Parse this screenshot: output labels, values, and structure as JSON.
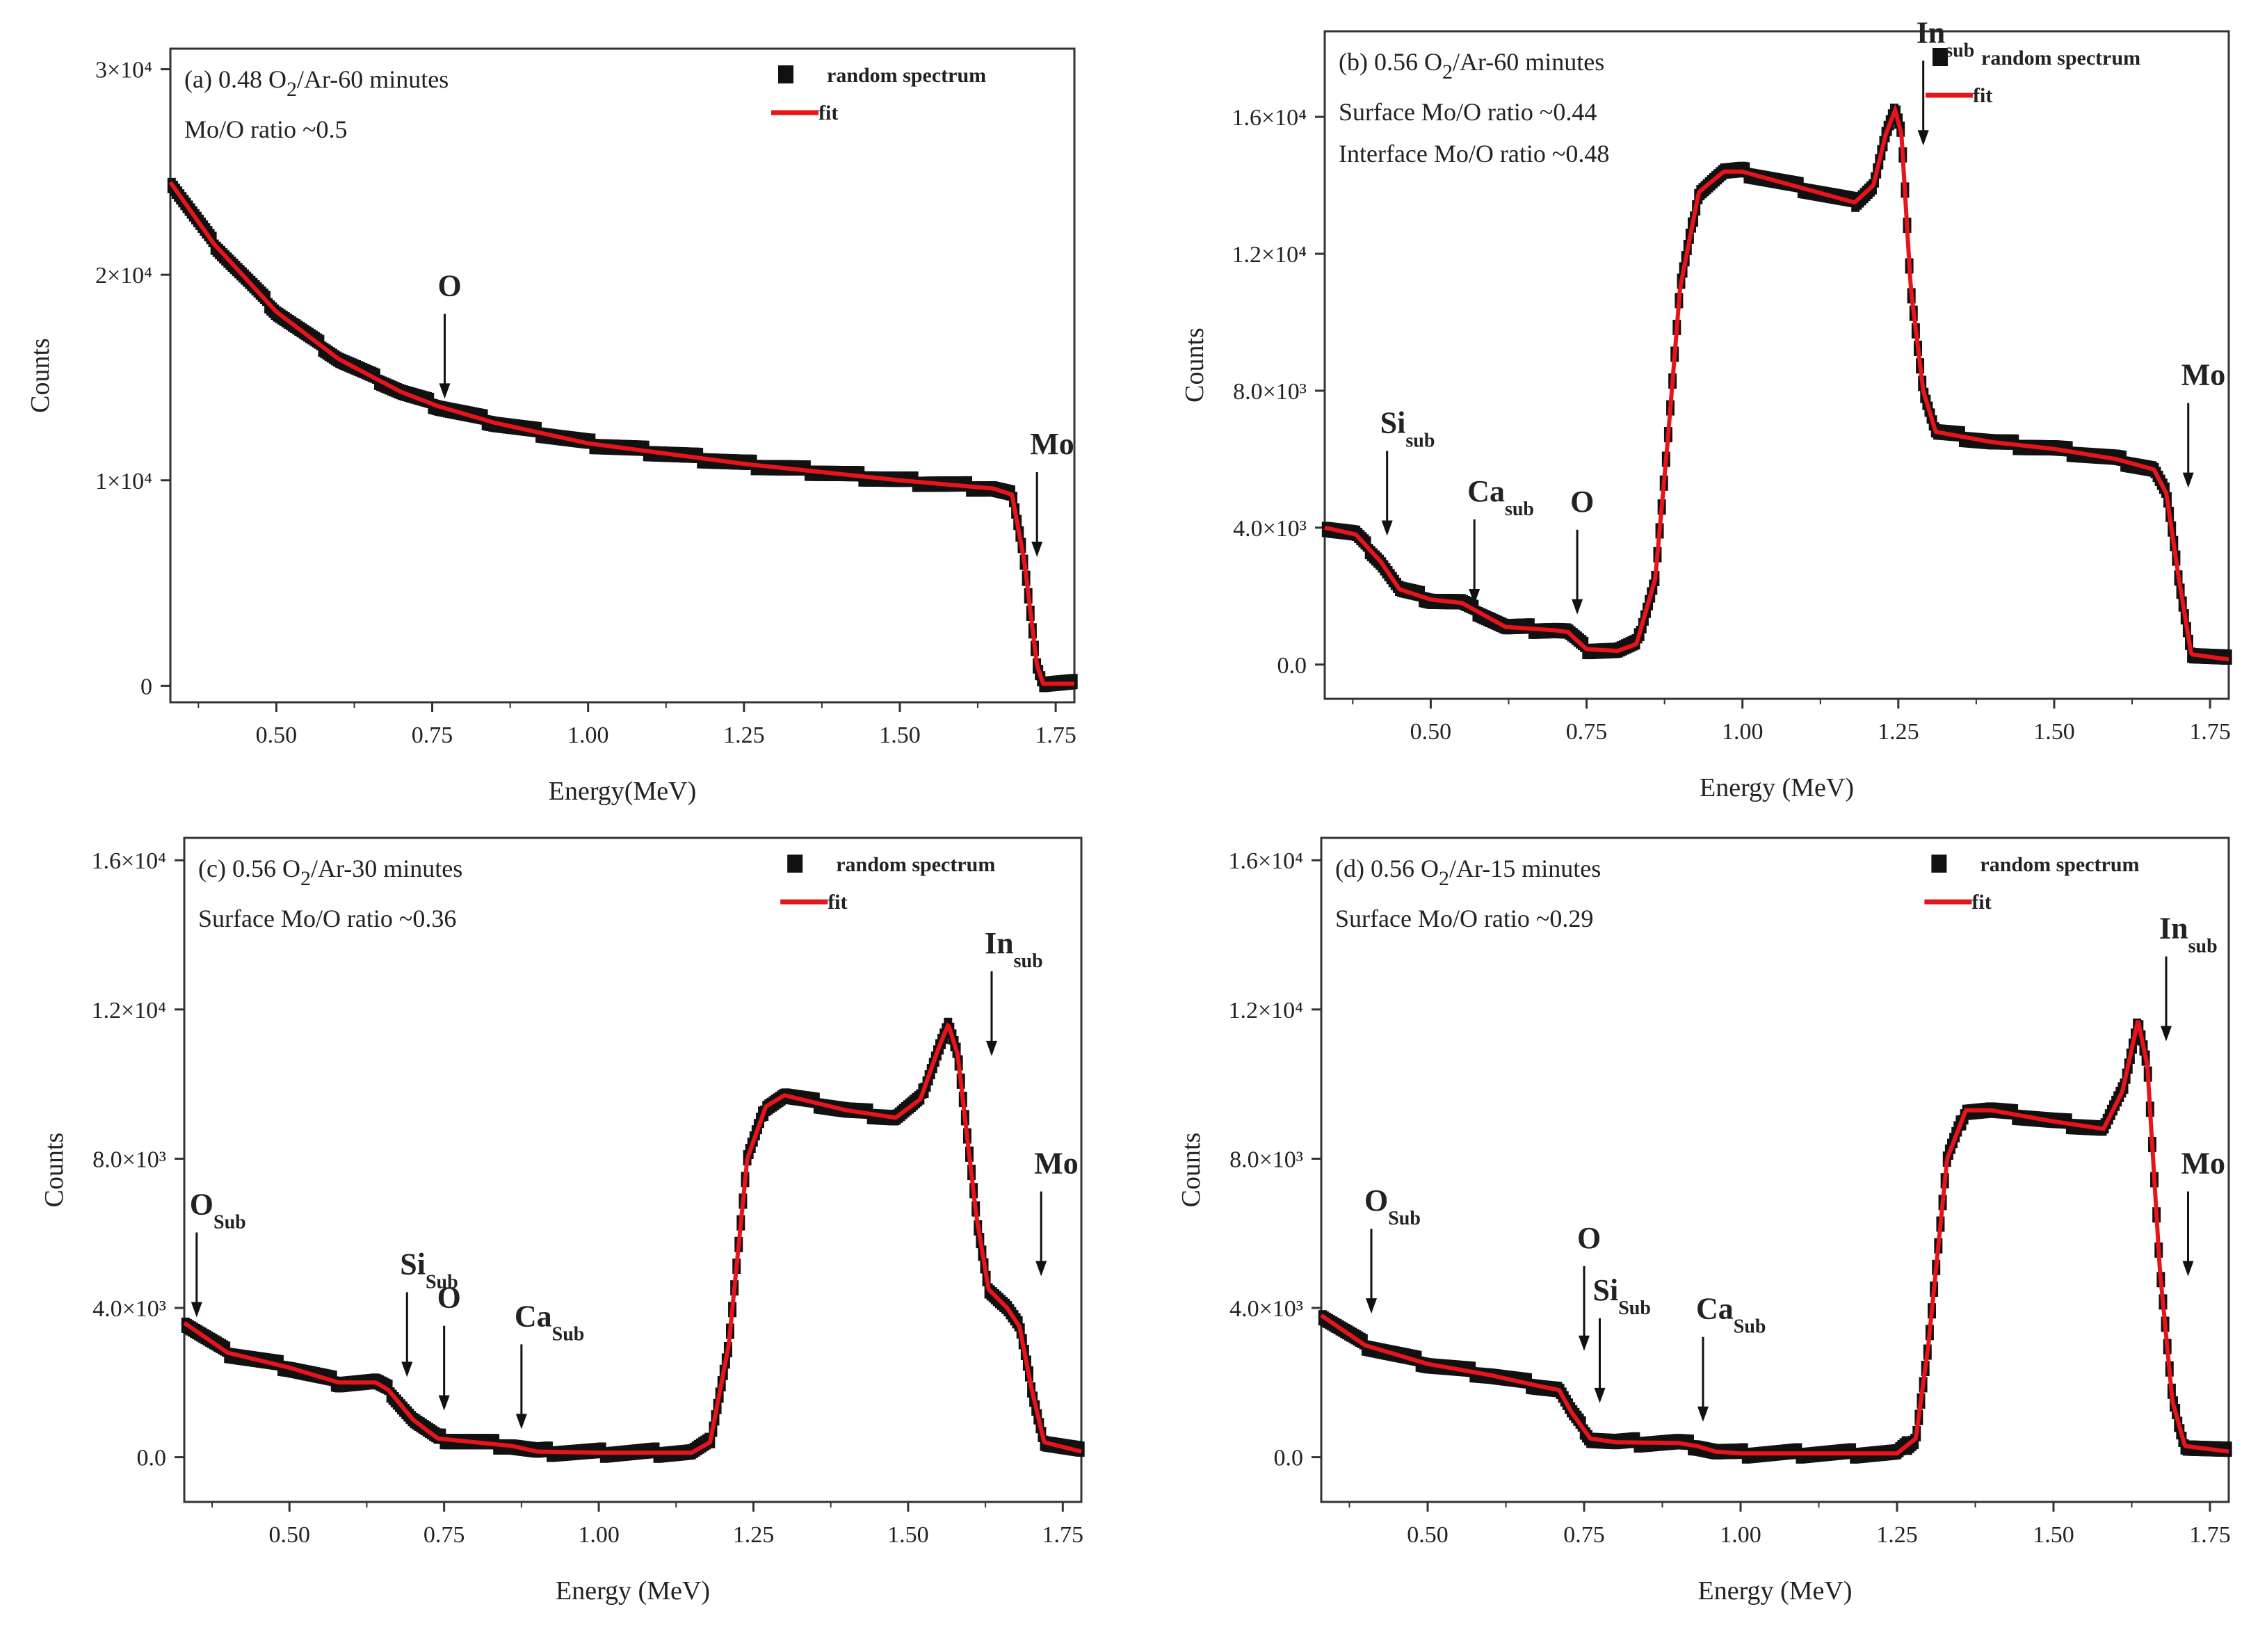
{
  "figure": {
    "y_tick_labels_top": [
      "3×10⁴",
      "2×10⁴",
      "1×10⁴",
      "0"
    ],
    "y_tick_labels_other": [
      "1.6×10⁴",
      "1.2×10⁴",
      "8.0×10³",
      "4.0×10³",
      "0.0"
    ]
  },
  "colors": {
    "marker": "#111111",
    "fit": "#e8141c",
    "axis": "#333333"
  },
  "chart_data": [
    {
      "panel": "a",
      "type": "scatter",
      "title": "(a) 0.48 O2/Ar-60 minutes",
      "info_lines": [
        "Mo/O ratio ~0.5"
      ],
      "xlabel": "Energy(MeV)",
      "ylabel": "Counts",
      "xlim": [
        0.33,
        1.78
      ],
      "ylim": [
        -800,
        31000
      ],
      "x_ticks": [
        0.5,
        0.75,
        1.0,
        1.25,
        1.5,
        1.75
      ],
      "x_tick_labels": [
        "0.50",
        "0.75",
        "1.00",
        "1.25",
        "1.50",
        "1.75"
      ],
      "y_ticks": [
        30000,
        20000,
        10000,
        0
      ],
      "y_tick_labels": [
        "3×10⁴",
        "2×10⁴",
        "1×10⁴",
        "0"
      ],
      "legend": [
        "random spectrum",
        "fit"
      ],
      "series": [
        {
          "name": "random spectrum",
          "style": "markers"
        },
        {
          "name": "fit",
          "style": "line"
        }
      ],
      "curve_points": [
        [
          0.33,
          24500
        ],
        [
          0.4,
          21500
        ],
        [
          0.5,
          18200
        ],
        [
          0.6,
          15900
        ],
        [
          0.7,
          14300
        ],
        [
          0.76,
          13600
        ],
        [
          0.85,
          12800
        ],
        [
          1.0,
          11800
        ],
        [
          1.25,
          10800
        ],
        [
          1.5,
          10000
        ],
        [
          1.65,
          9600
        ],
        [
          1.68,
          9300
        ],
        [
          1.7,
          6000
        ],
        [
          1.72,
          1000
        ],
        [
          1.73,
          100
        ],
        [
          1.78,
          100
        ]
      ],
      "annotations": [
        {
          "label": "O",
          "sub": "",
          "x": 0.77,
          "y": 13700
        },
        {
          "label": "Mo",
          "sub": "",
          "x": 1.72,
          "y": 6000
        }
      ]
    },
    {
      "panel": "b",
      "type": "scatter",
      "title": "(b) 0.56 O2/Ar-60 minutes",
      "info_lines": [
        "Surface Mo/O ratio ~0.44",
        "Interface Mo/O ratio ~0.48"
      ],
      "xlabel": "Energy (MeV)",
      "ylabel": "Counts",
      "xlim": [
        0.33,
        1.78
      ],
      "ylim": [
        -1000,
        18500
      ],
      "x_ticks": [
        0.5,
        0.75,
        1.0,
        1.25,
        1.5,
        1.75
      ],
      "x_tick_labels": [
        "0.50",
        "0.75",
        "1.00",
        "1.25",
        "1.50",
        "1.75"
      ],
      "y_ticks": [
        16000,
        12000,
        8000,
        4000,
        0
      ],
      "y_tick_labels": [
        "1.6×10⁴",
        "1.2×10⁴",
        "8.0×10³",
        "4.0×10³",
        "0.0"
      ],
      "legend": [
        "random spectrum",
        "fit"
      ],
      "series": [
        {
          "name": "random spectrum",
          "style": "markers"
        },
        {
          "name": "fit",
          "style": "line"
        }
      ],
      "curve_points": [
        [
          0.33,
          4000
        ],
        [
          0.38,
          3800
        ],
        [
          0.42,
          3000
        ],
        [
          0.45,
          2200
        ],
        [
          0.5,
          1900
        ],
        [
          0.55,
          1800
        ],
        [
          0.58,
          1500
        ],
        [
          0.62,
          1100
        ],
        [
          0.7,
          1000
        ],
        [
          0.72,
          950
        ],
        [
          0.75,
          450
        ],
        [
          0.8,
          400
        ],
        [
          0.83,
          600
        ],
        [
          0.86,
          2500
        ],
        [
          0.88,
          6500
        ],
        [
          0.9,
          11000
        ],
        [
          0.93,
          13800
        ],
        [
          0.97,
          14400
        ],
        [
          1.0,
          14400
        ],
        [
          1.1,
          13900
        ],
        [
          1.18,
          13500
        ],
        [
          1.21,
          14000
        ],
        [
          1.23,
          15500
        ],
        [
          1.245,
          16200
        ],
        [
          1.255,
          15500
        ],
        [
          1.27,
          11000
        ],
        [
          1.29,
          8000
        ],
        [
          1.31,
          6800
        ],
        [
          1.4,
          6500
        ],
        [
          1.5,
          6300
        ],
        [
          1.6,
          6000
        ],
        [
          1.66,
          5700
        ],
        [
          1.68,
          5000
        ],
        [
          1.7,
          2500
        ],
        [
          1.72,
          300
        ],
        [
          1.78,
          150
        ]
      ],
      "annotations": [
        {
          "label": "Si",
          "sub": "sub",
          "x": 0.43,
          "y": 3600
        },
        {
          "label": "Ca",
          "sub": "sub",
          "x": 0.57,
          "y": 1600
        },
        {
          "label": "O",
          "sub": "",
          "x": 0.735,
          "y": 1300
        },
        {
          "label": "In",
          "sub": "sub",
          "x": 1.29,
          "y": 15000
        },
        {
          "label": "Mo",
          "sub": "",
          "x": 1.715,
          "y": 5000
        }
      ]
    },
    {
      "panel": "c",
      "type": "scatter",
      "title": "(c) 0.56 O2/Ar-30 minutes",
      "info_lines": [
        "Surface Mo/O ratio ~0.36"
      ],
      "xlabel": "Energy (MeV)",
      "ylabel": "Counts",
      "xlim": [
        0.33,
        1.78
      ],
      "ylim": [
        -1200,
        16600
      ],
      "x_ticks": [
        0.5,
        0.75,
        1.0,
        1.25,
        1.5,
        1.75
      ],
      "x_tick_labels": [
        "0.50",
        "0.75",
        "1.00",
        "1.25",
        "1.50",
        "1.75"
      ],
      "y_ticks": [
        16000,
        12000,
        8000,
        4000,
        0
      ],
      "y_tick_labels": [
        "1.6×10⁴",
        "1.2×10⁴",
        "8.0×10³",
        "4.0×10³",
        "0.0"
      ],
      "legend": [
        "random spectrum",
        "fit"
      ],
      "series": [
        {
          "name": "random spectrum",
          "style": "markers"
        },
        {
          "name": "fit",
          "style": "line"
        }
      ],
      "curve_points": [
        [
          0.33,
          3600
        ],
        [
          0.4,
          2800
        ],
        [
          0.5,
          2400
        ],
        [
          0.58,
          2000
        ],
        [
          0.64,
          2000
        ],
        [
          0.66,
          1800
        ],
        [
          0.7,
          1000
        ],
        [
          0.74,
          500
        ],
        [
          0.8,
          400
        ],
        [
          0.86,
          300
        ],
        [
          0.9,
          150
        ],
        [
          1.0,
          120
        ],
        [
          1.15,
          120
        ],
        [
          1.18,
          400
        ],
        [
          1.21,
          3000
        ],
        [
          1.24,
          8000
        ],
        [
          1.27,
          9400
        ],
        [
          1.3,
          9700
        ],
        [
          1.4,
          9300
        ],
        [
          1.48,
          9100
        ],
        [
          1.52,
          9600
        ],
        [
          1.55,
          11000
        ],
        [
          1.565,
          11600
        ],
        [
          1.58,
          10800
        ],
        [
          1.61,
          6500
        ],
        [
          1.63,
          4500
        ],
        [
          1.66,
          4000
        ],
        [
          1.68,
          3500
        ],
        [
          1.7,
          1800
        ],
        [
          1.72,
          400
        ],
        [
          1.78,
          150
        ]
      ],
      "annotations": [
        {
          "label": "O",
          "sub": "Sub",
          "x": 0.35,
          "y": 3600
        },
        {
          "label": "Si",
          "sub": "Sub",
          "x": 0.69,
          "y": 2000
        },
        {
          "label": "O",
          "sub": "",
          "x": 0.75,
          "y": 1100
        },
        {
          "label": "Ca",
          "sub": "Sub",
          "x": 0.875,
          "y": 600
        },
        {
          "label": "In",
          "sub": "sub",
          "x": 1.635,
          "y": 10600
        },
        {
          "label": "Mo",
          "sub": "",
          "x": 1.715,
          "y": 4700
        }
      ]
    },
    {
      "panel": "d",
      "type": "scatter",
      "title": "(d) 0.56 O2/Ar-15 minutes",
      "info_lines": [
        "Surface Mo/O ratio ~0.29"
      ],
      "xlabel": "Energy (MeV)",
      "ylabel": "Counts",
      "xlim": [
        0.33,
        1.78
      ],
      "ylim": [
        -1200,
        16600
      ],
      "x_ticks": [
        0.5,
        0.75,
        1.0,
        1.25,
        1.5,
        1.75
      ],
      "x_tick_labels": [
        "0.50",
        "0.75",
        "1.00",
        "1.25",
        "1.50",
        "1.75"
      ],
      "y_ticks": [
        16000,
        12000,
        8000,
        4000,
        0
      ],
      "y_tick_labels": [
        "1.6×10⁴",
        "1.2×10⁴",
        "8.0×10³",
        "4.0×10³",
        "0.0"
      ],
      "legend": [
        "random spectrum",
        "fit"
      ],
      "series": [
        {
          "name": "random spectrum",
          "style": "markers"
        },
        {
          "name": "fit",
          "style": "line"
        }
      ],
      "curve_points": [
        [
          0.33,
          3800
        ],
        [
          0.4,
          3000
        ],
        [
          0.5,
          2500
        ],
        [
          0.6,
          2200
        ],
        [
          0.68,
          1900
        ],
        [
          0.71,
          1800
        ],
        [
          0.73,
          1200
        ],
        [
          0.76,
          500
        ],
        [
          0.8,
          400
        ],
        [
          0.9,
          380
        ],
        [
          0.93,
          300
        ],
        [
          0.96,
          150
        ],
        [
          1.0,
          100
        ],
        [
          1.25,
          100
        ],
        [
          1.28,
          500
        ],
        [
          1.3,
          3000
        ],
        [
          1.33,
          8000
        ],
        [
          1.36,
          9300
        ],
        [
          1.4,
          9300
        ],
        [
          1.5,
          9000
        ],
        [
          1.58,
          8800
        ],
        [
          1.61,
          9800
        ],
        [
          1.635,
          11700
        ],
        [
          1.65,
          10500
        ],
        [
          1.67,
          5000
        ],
        [
          1.69,
          1500
        ],
        [
          1.71,
          300
        ],
        [
          1.78,
          150
        ]
      ],
      "annotations": [
        {
          "label": "O",
          "sub": "Sub",
          "x": 0.41,
          "y": 3700
        },
        {
          "label": "O",
          "sub": "",
          "x": 0.75,
          "y": 2700
        },
        {
          "label": "Si",
          "sub": "Sub",
          "x": 0.775,
          "y": 1300
        },
        {
          "label": "Ca",
          "sub": "Sub",
          "x": 0.94,
          "y": 800
        },
        {
          "label": "In",
          "sub": "sub",
          "x": 1.68,
          "y": 11000
        },
        {
          "label": "Mo",
          "sub": "",
          "x": 1.715,
          "y": 4700
        }
      ]
    }
  ]
}
